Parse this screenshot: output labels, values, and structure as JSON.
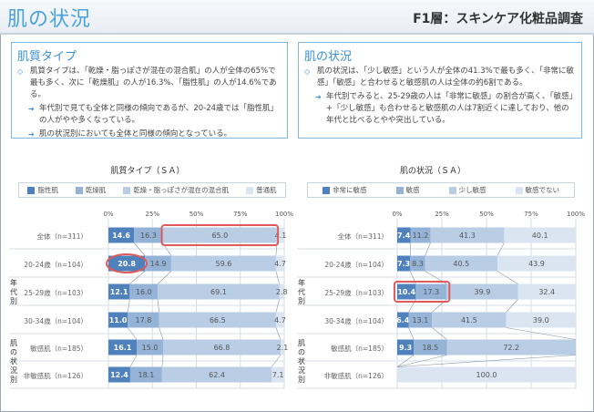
{
  "header": {
    "title": "肌の状況",
    "subtitle": "F1層：スキンケア化粧品調査"
  },
  "box_left": {
    "heading": "肌質タイプ",
    "p1": "肌質タイプは、「乾燥・脂っぽさが混在の混合肌」の人が全体の65%で最も多く、次に「乾燥肌」の人が16.3%、「脂性肌」の人が14.6%である。",
    "p2": "年代別で見ても全体と同様の傾向であるが、20-24歳では「脂性肌」の人がやや多くなっている。",
    "p3": "肌の状況別においても全体と同様の傾向となっている。"
  },
  "box_right": {
    "heading": "肌の状況",
    "p1": "肌の状況は、「少し敏感」という人が全体の41.3%で最も多く、「非常に敏感」「敏感」と合わせると敏感肌の人は全体の約6割である。",
    "p2": "年代別でみると、25-29歳の人は「非常に敏感」の割合が高く、「敏感」+「少し敏感」も合わせると敏感肌の人は7割近くに達しており、他の年代と比べるとやや突出している。"
  },
  "colors": {
    "c1": "#4f81bd",
    "c2": "#95b3d7",
    "c3": "#b9cde5",
    "c4": "#dbe5f1",
    "highlight": "#e05a5a"
  },
  "row_labels": [
    "全体（n=311）",
    "20-24歳（n=104）",
    "25-29歳（n=103）",
    "30-34歳（n=104）",
    "敏感肌（n=185）",
    "非敏感肌（n=126）"
  ],
  "group_labels": {
    "age": "年代別",
    "skin": "肌の状況別"
  },
  "chart_data": [
    {
      "type": "bar",
      "stacked": true,
      "orientation": "horizontal",
      "title": "肌質タイプ（ＳＡ）",
      "x_ticks": [
        "0%",
        "25%",
        "50%",
        "75%",
        "100%"
      ],
      "xlim": [
        0,
        100
      ],
      "categories": [
        "全体（n=311）",
        "20-24歳（n=104）",
        "25-29歳（n=103）",
        "30-34歳（n=104）",
        "敏感肌（n=185）",
        "非敏感肌（n=126）"
      ],
      "series": [
        {
          "name": "脂性肌",
          "values": [
            14.6,
            20.8,
            12.1,
            11.0,
            16.1,
            12.4
          ]
        },
        {
          "name": "乾燥肌",
          "values": [
            16.3,
            14.9,
            16.0,
            17.8,
            15.0,
            18.1
          ]
        },
        {
          "name": "乾燥・脂っぽさが混在の混合肌",
          "values": [
            65.0,
            59.6,
            69.1,
            66.5,
            66.8,
            62.4
          ]
        },
        {
          "name": "普通肌",
          "values": [
            4.1,
            4.7,
            2.8,
            4.7,
            2.1,
            7.1
          ]
        }
      ]
    },
    {
      "type": "bar",
      "stacked": true,
      "orientation": "horizontal",
      "title": "肌の状況（ＳＡ）",
      "x_ticks": [
        "0%",
        "25%",
        "50%",
        "75%",
        "100%"
      ],
      "xlim": [
        0,
        100
      ],
      "categories": [
        "全体（n=311）",
        "20-24歳（n=104）",
        "25-29歳（n=103）",
        "30-34歳（n=104）",
        "敏感肌（n=185）",
        "非敏感肌（n=126）"
      ],
      "series": [
        {
          "name": "非常に敏感",
          "values": [
            7.4,
            7.3,
            10.4,
            6.4,
            9.3,
            0
          ]
        },
        {
          "name": "敏感",
          "values": [
            11.2,
            8.3,
            17.3,
            13.1,
            18.5,
            0
          ]
        },
        {
          "name": "少し敏感",
          "values": [
            41.3,
            40.5,
            39.9,
            41.5,
            72.2,
            0
          ]
        },
        {
          "name": "敏感でない",
          "values": [
            40.1,
            43.9,
            32.4,
            39.0,
            0,
            100.0
          ]
        }
      ]
    }
  ]
}
